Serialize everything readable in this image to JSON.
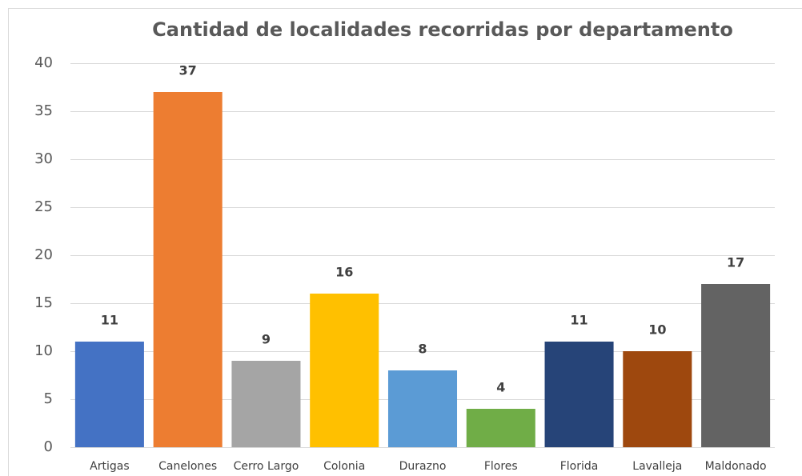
{
  "chart_data": {
    "type": "bar",
    "title": "Cantidad de localidades recorridas por departamento",
    "categories": [
      "Artigas",
      "Canelones",
      "Cerro Largo",
      "Colonia",
      "Durazno",
      "Flores",
      "Florida",
      "Lavalleja",
      "Maldonado"
    ],
    "values": [
      11,
      37,
      9,
      16,
      8,
      4,
      11,
      10,
      17
    ],
    "colors": [
      "#4472c4",
      "#ed7d31",
      "#a5a5a5",
      "#ffc000",
      "#5b9bd5",
      "#70ad47",
      "#264478",
      "#9e480e",
      "#636363"
    ],
    "ylim": [
      0,
      40
    ],
    "yticks": [
      0,
      5,
      10,
      15,
      20,
      25,
      30,
      35,
      40
    ],
    "grid": true,
    "data_labels": true
  }
}
